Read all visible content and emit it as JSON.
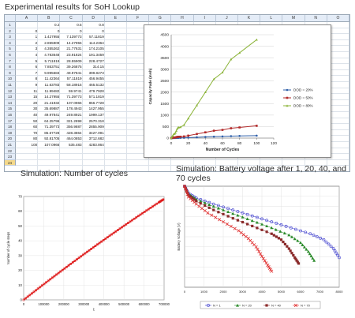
{
  "captions": {
    "spreadsheet": "Experimental results for SoH Lookup",
    "cycles": "Simulation: Number of cycles",
    "voltage": "Simulation: Battery voltage after 1, 20, 40, and 70 cycles"
  },
  "spreadsheet": {
    "columns": [
      "A",
      "B",
      "C",
      "D",
      "E",
      "F",
      "G",
      "H",
      "I",
      "J",
      "K",
      "L",
      "M",
      "N",
      "O"
    ],
    "header_row": [
      "",
      "0.2",
      "0.5",
      "0.8"
    ],
    "rows": [
      [
        "0",
        "0",
        "0",
        "0"
      ],
      [
        "1",
        "1.427955",
        "7.139773",
        "57.11819"
      ],
      [
        "2",
        "2.855909",
        "14.27955",
        "114.2364"
      ],
      [
        "3",
        "4.355262",
        "21.77631",
        "174.2105"
      ],
      [
        "4",
        "4.783648",
        "23.91824",
        "191.3459"
      ],
      [
        "5",
        "5.711819",
        "28.55909",
        "228.4727"
      ],
      [
        "6",
        "7.853751",
        "39.26875",
        "314.15"
      ],
      [
        "7",
        "9.995683",
        "49.97841",
        "399.8273"
      ],
      [
        "8",
        "11.42364",
        "57.11819",
        "456.9455"
      ],
      [
        "9",
        "11.63783",
        "58.18915",
        "465.5132"
      ],
      [
        "11",
        "11.99482",
        "59.9741",
        "479.7928"
      ],
      [
        "15",
        "14.27955",
        "71.39773",
        "571.1819"
      ],
      [
        "20",
        "21.41932",
        "107.0966",
        "856.7728"
      ],
      [
        "30",
        "35.69887",
        "178.4943",
        "1427.955"
      ],
      [
        "40",
        "49.97841",
        "249.8921",
        "1999.137"
      ],
      [
        "50",
        "64.25796",
        "321.2898",
        "2570.318"
      ],
      [
        "60",
        "71.39773",
        "356.9887",
        "2855.909"
      ],
      [
        "70",
        "85.67728",
        "428.3864",
        "3427.091"
      ],
      [
        "80",
        "92.81705",
        "464.0853",
        "3712.682"
      ],
      [
        "100",
        "107.0966",
        "535.483",
        "4283.864"
      ]
    ],
    "row_count": 24
  },
  "chart_data": [
    {
      "type": "line",
      "title": "",
      "xlabel": "Number of Cycles",
      "ylabel": "Capacity Fade (mAh)",
      "xlim": [
        0,
        120
      ],
      "ylim": [
        0,
        4500
      ],
      "xticks": [
        "0",
        "20",
        "40",
        "60",
        "80",
        "100",
        "120"
      ],
      "yticks": [
        "0",
        "500",
        "1000",
        "1500",
        "2000",
        "2500",
        "3000",
        "3500",
        "4000",
        "4500"
      ],
      "legend_position": "right",
      "x": [
        0,
        1,
        2,
        3,
        4,
        5,
        6,
        7,
        8,
        9,
        11,
        15,
        20,
        30,
        40,
        50,
        60,
        70,
        80,
        100
      ],
      "series": [
        {
          "name": "DOD = 20%",
          "color": "#2f5fa8",
          "values": [
            0,
            1.43,
            2.86,
            4.36,
            4.78,
            5.71,
            7.85,
            10.0,
            11.42,
            11.64,
            11.99,
            14.28,
            21.42,
            35.7,
            49.98,
            64.26,
            71.4,
            85.68,
            92.82,
            107.1
          ]
        },
        {
          "name": "DOD = 50%",
          "color": "#b22a2a",
          "values": [
            0,
            7.14,
            14.28,
            21.78,
            23.92,
            28.56,
            39.27,
            49.98,
            57.12,
            58.19,
            59.97,
            71.4,
            107.1,
            178.49,
            249.89,
            321.29,
            356.99,
            428.39,
            464.09,
            535.48
          ]
        },
        {
          "name": "DOD = 80%",
          "color": "#8cb43a",
          "values": [
            0,
            57.12,
            114.24,
            174.21,
            191.35,
            228.47,
            314.15,
            399.83,
            456.95,
            465.51,
            479.79,
            571.18,
            856.77,
            1427.96,
            1999.14,
            2570.32,
            2855.91,
            3427.09,
            3712.68,
            4283.86
          ]
        }
      ]
    },
    {
      "type": "line",
      "title": "",
      "xlabel": "t",
      "ylabel": "Number of cycle steps",
      "xlim": [
        0,
        400000
      ],
      "ylim": [
        0,
        70
      ],
      "xticks": [
        "0",
        "100000",
        "200000",
        "300000",
        "400000",
        "500000",
        "600000",
        "700000"
      ],
      "yticks": [
        "0",
        "10",
        "20",
        "30",
        "40",
        "50",
        "60",
        "70"
      ],
      "series": [
        {
          "name": "",
          "color": "#dd1111",
          "points": [
            [
              0,
              0
            ],
            [
              35000,
              6.5
            ],
            [
              70000,
              12.9
            ],
            [
              105000,
              19.2
            ],
            [
              140000,
              25.4
            ],
            [
              175000,
              31.5
            ],
            [
              210000,
              37.5
            ],
            [
              245000,
              43.4
            ],
            [
              280000,
              49.2
            ],
            [
              315000,
              54.9
            ],
            [
              350000,
              60.5
            ],
            [
              385000,
              66.0
            ],
            [
              400000,
              68.3
            ]
          ]
        }
      ]
    },
    {
      "type": "line",
      "title": "",
      "xlabel": "",
      "ylabel": "Battery Voltage (V)",
      "xlim": [
        0,
        8000
      ],
      "ylim": [
        2.5,
        4.2
      ],
      "xticks": [
        "0",
        "1000",
        "2000",
        "3000",
        "4000",
        "5000",
        "6000",
        "7000",
        "8000"
      ],
      "legend_position": "bottom",
      "series": [
        {
          "name": "N = 1",
          "color": "#3a3acc",
          "marker": "circle",
          "points": [
            [
              0,
              4.2
            ],
            [
              200,
              4.08
            ],
            [
              600,
              4.0
            ],
            [
              1500,
              3.9
            ],
            [
              2500,
              3.8
            ],
            [
              3500,
              3.7
            ],
            [
              4500,
              3.6
            ],
            [
              5500,
              3.5
            ],
            [
              6500,
              3.4
            ],
            [
              7200,
              3.3
            ],
            [
              7700,
              3.15
            ],
            [
              8000,
              3.0
            ]
          ]
        },
        {
          "name": "N = 20",
          "color": "#2a8a2a",
          "marker": "triangle",
          "points": [
            [
              0,
              4.2
            ],
            [
              200,
              4.07
            ],
            [
              600,
              3.98
            ],
            [
              1500,
              3.86
            ],
            [
              2500,
              3.74
            ],
            [
              3500,
              3.62
            ],
            [
              4500,
              3.5
            ],
            [
              5400,
              3.38
            ],
            [
              6000,
              3.25
            ],
            [
              6400,
              3.1
            ],
            [
              6700,
              2.95
            ]
          ]
        },
        {
          "name": "N = 40",
          "color": "#8a2a2a",
          "marker": "square",
          "points": [
            [
              0,
              4.2
            ],
            [
              200,
              4.05
            ],
            [
              600,
              3.95
            ],
            [
              1500,
              3.8
            ],
            [
              2500,
              3.66
            ],
            [
              3500,
              3.53
            ],
            [
              4500,
              3.4
            ],
            [
              5000,
              3.3
            ],
            [
              5400,
              3.15
            ],
            [
              5700,
              3.0
            ],
            [
              5900,
              2.9
            ]
          ]
        },
        {
          "name": "N = 70",
          "color": "#e03030",
          "marker": "x",
          "points": [
            [
              0,
              4.2
            ],
            [
              200,
              4.02
            ],
            [
              600,
              3.9
            ],
            [
              1200,
              3.75
            ],
            [
              2000,
              3.6
            ],
            [
              2800,
              3.45
            ],
            [
              3300,
              3.32
            ],
            [
              3700,
              3.18
            ],
            [
              4000,
              3.02
            ],
            [
              4300,
              2.87
            ],
            [
              4500,
              2.77
            ]
          ]
        }
      ]
    }
  ]
}
